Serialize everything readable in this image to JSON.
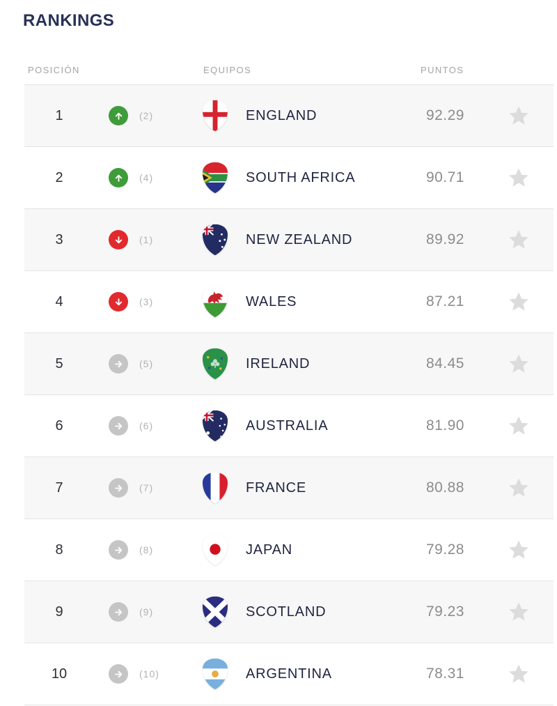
{
  "title": "RANKINGS",
  "table": {
    "headers": {
      "position": "POSICIÓN",
      "team": "EQUIPOS",
      "points": "PUNTOS"
    },
    "rows": [
      {
        "position": "1",
        "movement": "up",
        "previous": "(2)",
        "flag": "england",
        "team": "ENGLAND",
        "points": "92.29"
      },
      {
        "position": "2",
        "movement": "up",
        "previous": "(4)",
        "flag": "south-africa",
        "team": "SOUTH AFRICA",
        "points": "90.71"
      },
      {
        "position": "3",
        "movement": "down",
        "previous": "(1)",
        "flag": "new-zealand",
        "team": "NEW ZEALAND",
        "points": "89.92"
      },
      {
        "position": "4",
        "movement": "down",
        "previous": "(3)",
        "flag": "wales",
        "team": "WALES",
        "points": "87.21"
      },
      {
        "position": "5",
        "movement": "same",
        "previous": "(5)",
        "flag": "ireland",
        "team": "IRELAND",
        "points": "84.45"
      },
      {
        "position": "6",
        "movement": "same",
        "previous": "(6)",
        "flag": "australia",
        "team": "AUSTRALIA",
        "points": "81.90"
      },
      {
        "position": "7",
        "movement": "same",
        "previous": "(7)",
        "flag": "france",
        "team": "FRANCE",
        "points": "80.88"
      },
      {
        "position": "8",
        "movement": "same",
        "previous": "(8)",
        "flag": "japan",
        "team": "JAPAN",
        "points": "79.28"
      },
      {
        "position": "9",
        "movement": "same",
        "previous": "(9)",
        "flag": "scotland",
        "team": "SCOTLAND",
        "points": "79.23"
      },
      {
        "position": "10",
        "movement": "same",
        "previous": "(10)",
        "flag": "argentina",
        "team": "ARGENTINA",
        "points": "78.31"
      }
    ]
  },
  "icons": {
    "up": "up-arrow-icon",
    "down": "down-arrow-icon",
    "same": "right-arrow-icon",
    "star": "star-icon"
  },
  "colors": {
    "title_navy": "#273157",
    "movement_up": "#3f9c3a",
    "movement_down": "#e12a2e",
    "movement_same": "#c5c5c5",
    "star_gray": "#dcdcdc",
    "row_alternate": "#f7f7f7"
  }
}
